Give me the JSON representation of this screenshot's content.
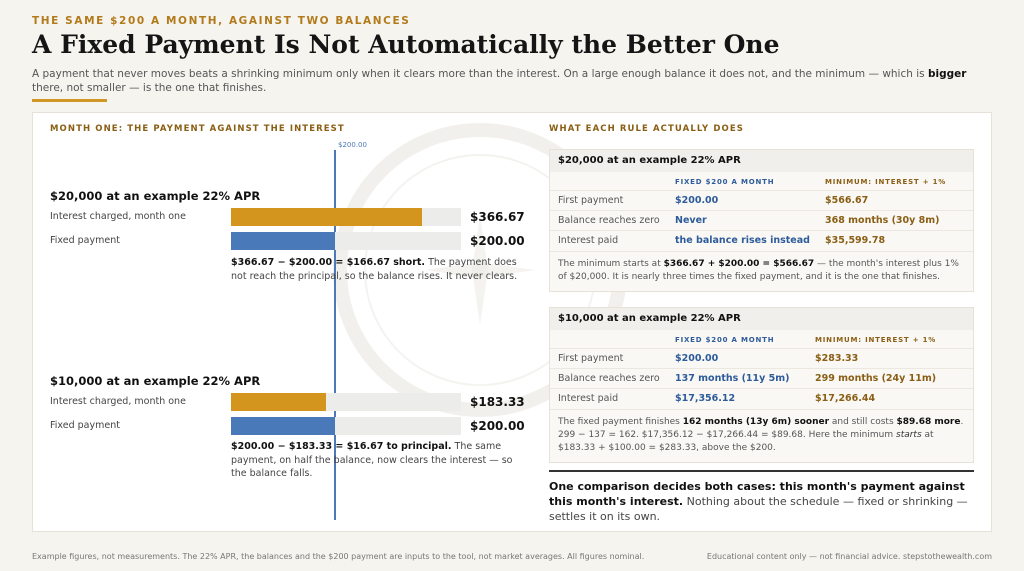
{
  "header": {
    "kicker": "THE SAME $200 A MONTH, AGAINST TWO BALANCES",
    "title": "A Fixed Payment Is Not Automatically the Better One",
    "deck_pre": "A payment that never moves beats a shrinking minimum only when it clears more than the interest. On a large enough balance it does not, and the minimum — which is ",
    "deck_bold": "bigger",
    "deck_post": " there, not smaller — is the one that finishes."
  },
  "left": {
    "section_title": "MONTH ONE: THE PAYMENT AGAINST THE INTEREST",
    "reference_label": "$200.00"
  },
  "chart_data": {
    "type": "bar",
    "orientation": "horizontal",
    "title": "MONTH ONE: THE PAYMENT AGAINST THE INTEREST",
    "reference_line": {
      "value": 200,
      "label": "$200.00"
    },
    "xlim": [
      0,
      550
    ],
    "categories": [
      "Interest charged, month one",
      "Fixed payment"
    ],
    "colors": {
      "interest": "#d4951f",
      "payment": "#4a79b9"
    },
    "groups": [
      {
        "title": "$20,000 at an example 22% APR",
        "values": [
          366.67,
          200.0
        ],
        "value_labels": [
          "$366.67",
          "$200.00"
        ],
        "note_bold": "$366.67 − $200.00 = $166.67 short.",
        "note_rest": " The payment does not reach the principal, so the balance rises. It never clears."
      },
      {
        "title": "$10,000 at an example 22% APR",
        "values": [
          183.33,
          200.0
        ],
        "value_labels": [
          "$183.33",
          "$200.00"
        ],
        "note_bold": "$200.00 − $183.33 = $16.67 to principal.",
        "note_rest": " The same payment, on half the balance, now clears the interest — so the balance falls."
      }
    ]
  },
  "right": {
    "section_title": "WHAT EACH RULE ACTUALLY DOES",
    "col_fixed": "FIXED $200 A MONTH",
    "col_min": "MINIMUM: INTEREST + 1%",
    "cards": [
      {
        "title": "$20,000 at an example 22% APR",
        "rows": [
          {
            "label": "First payment",
            "fixed": "$200.00",
            "min": "$566.67"
          },
          {
            "label": "Balance reaches zero",
            "fixed": "Never",
            "min": "368 months (30y 8m)"
          },
          {
            "label": "Interest paid",
            "fixed": "the balance rises instead",
            "min": "$35,599.78"
          }
        ],
        "note_a": "The minimum starts at ",
        "note_b": "$366.67 + $200.00 = $566.67",
        "note_c": " — the month's interest plus 1% of $20,000. It is nearly three times the fixed payment, and it is the one that finishes."
      },
      {
        "title": "$10,000 at an example 22% APR",
        "rows": [
          {
            "label": "First payment",
            "fixed": "$200.00",
            "min": "$283.33"
          },
          {
            "label": "Balance reaches zero",
            "fixed": "137 months (11y 5m)",
            "min": "299 months (24y 11m)"
          },
          {
            "label": "Interest paid",
            "fixed": "$17,356.12",
            "min": "$17,266.44"
          }
        ],
        "note_a": "The fixed payment finishes ",
        "note_b": "162 months (13y 6m) sooner",
        "note_c": " and still costs ",
        "note_d": "$89.68 more",
        "note_e": ".  299 − 137 = 162.  $17,356.12 − $17,266.44 = $89.68. Here the minimum ",
        "note_f": "starts",
        "note_g": " at $183.33 + $100.00 = $283.33, above the $200."
      }
    ],
    "conclusion_bold": "One comparison decides both cases: this month's payment against this month's interest.",
    "conclusion_rest": " Nothing about the schedule — fixed or shrinking — settles it on its own."
  },
  "footer": {
    "left": "Example figures, not measurements. The 22% APR, the balances and the $200 payment are inputs to the tool, not market averages. All figures nominal.",
    "right": "Educational content only — not financial advice.  stepstothewealth.com"
  },
  "watermark": {
    "icon": "compass-seal-icon"
  }
}
